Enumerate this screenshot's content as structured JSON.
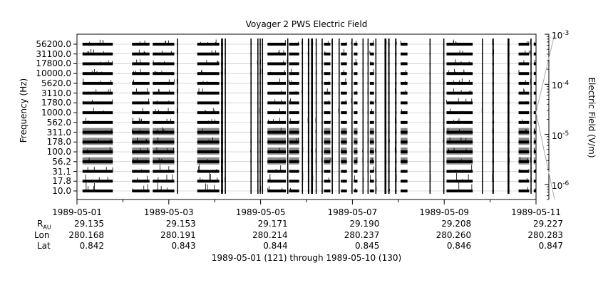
{
  "chart_data": {
    "type": "heatmap",
    "title": "Voyager 2 PWS Electric Field",
    "ylabel": "Frequency (Hz)",
    "y_scale": "log",
    "frequency_channels": [
      "10.0",
      "17.8",
      "31.1",
      "56.2",
      "100.0",
      "178.0",
      "311.0",
      "562.0",
      "1000.0",
      "1780.0",
      "3110.0",
      "5620.0",
      "10000.0",
      "17800.0",
      "31100.0",
      "56200.0"
    ],
    "x_tick_dates": [
      "1989-05-01",
      "1989-05-03",
      "1989-05-05",
      "1989-05-07",
      "1989-05-09",
      "1989-05-11"
    ],
    "x_range_days": [
      0,
      10
    ],
    "data_intervals_days": [
      [
        0.12,
        0.78
      ],
      [
        1.2,
        1.58
      ],
      [
        1.65,
        2.12
      ],
      [
        2.18,
        2.19
      ],
      [
        2.62,
        3.1
      ],
      [
        3.14,
        3.18
      ],
      [
        3.22,
        3.23
      ],
      [
        3.78,
        3.8
      ],
      [
        3.93,
        3.95
      ],
      [
        3.98,
        4.0
      ],
      [
        4.03,
        4.05
      ],
      [
        4.15,
        4.55
      ],
      [
        4.58,
        4.6
      ],
      [
        4.62,
        4.84
      ],
      [
        4.9,
        4.92
      ],
      [
        5.03,
        5.06
      ],
      [
        5.1,
        5.14
      ],
      [
        5.2,
        5.22
      ],
      [
        5.33,
        5.35
      ],
      [
        5.38,
        5.52
      ],
      [
        5.55,
        5.57
      ],
      [
        5.7,
        5.72
      ],
      [
        5.75,
        5.88
      ],
      [
        5.98,
        6.0
      ],
      [
        6.03,
        6.11
      ],
      [
        6.22,
        6.24
      ],
      [
        6.33,
        6.35
      ],
      [
        6.38,
        6.47
      ],
      [
        6.5,
        6.52
      ],
      [
        6.7,
        6.74
      ],
      [
        6.78,
        6.81
      ],
      [
        6.93,
        6.96
      ],
      [
        7.05,
        7.2
      ],
      [
        7.68,
        7.7
      ],
      [
        7.98,
        8.0
      ],
      [
        8.05,
        8.62
      ],
      [
        8.82,
        8.84
      ],
      [
        9.05,
        9.08
      ],
      [
        9.38,
        9.42
      ],
      [
        9.62,
        9.85
      ],
      [
        9.88,
        9.9
      ],
      [
        9.95,
        10.0
      ]
    ],
    "colorbar": {
      "label": "Electric Field (V/m)",
      "scale": "log",
      "range": [
        5e-07,
        0.001
      ],
      "ticks": [
        {
          "base": "10",
          "exp": "-3",
          "value": 0.001
        },
        {
          "base": "10",
          "exp": "-4",
          "value": 0.0001
        },
        {
          "base": "10",
          "exp": "-5",
          "value": 1e-05
        },
        {
          "base": "10",
          "exp": "-6",
          "value": 1e-06
        }
      ]
    },
    "ephemeris": {
      "row_labels": {
        "r": {
          "main": "R",
          "sub": "AU"
        },
        "lon": "Lon",
        "lat": "Lat"
      },
      "r_au": [
        "29.135",
        "29.153",
        "29.171",
        "29.190",
        "29.208",
        "29.227"
      ],
      "lon": [
        "280.168",
        "280.191",
        "280.214",
        "280.237",
        "280.260",
        "280.283"
      ],
      "lat": [
        "0.842",
        "0.843",
        "0.844",
        "0.845",
        "0.846",
        "0.847"
      ]
    },
    "date_range_caption": "1989-05-01 (121) through 1989-05-10 (130)"
  }
}
